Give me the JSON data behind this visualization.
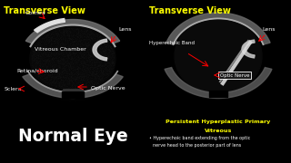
{
  "bg_color": "#000000",
  "left_title": "Transverse View",
  "right_title": "Transverse View",
  "left_label": "Normal Eye",
  "right_title_box": "Persistent Hyperplastic Primary\nVitreous",
  "right_bullet": "Hyperechoic band extending from the optic\nnerve head to the posterior part of lens",
  "title_color": "#ffff00",
  "title_fontsize": 7.0,
  "label_color": "#ffffff",
  "label_fontsize": 13.5
}
